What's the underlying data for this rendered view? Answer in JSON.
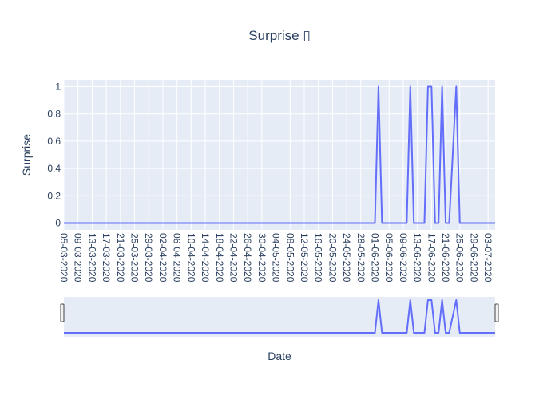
{
  "chart_data": {
    "type": "line",
    "title": "Surprise ▯",
    "xlabel": "Date",
    "ylabel": "Surprise",
    "ylim": [
      -0.05,
      1.05
    ],
    "yticks": [
      "0",
      "0.2",
      "0.4",
      "0.6",
      "0.8",
      "1"
    ],
    "xticks": [
      "05-03-2020",
      "09-03-2020",
      "13-03-2020",
      "17-03-2020",
      "21-03-2020",
      "25-03-2020",
      "29-03-2020",
      "02-04-2020",
      "06-04-2020",
      "10-04-2020",
      "14-04-2020",
      "18-04-2020",
      "22-04-2020",
      "26-04-2020",
      "30-04-2020",
      "04-05-2020",
      "08-05-2020",
      "12-05-2020",
      "16-05-2020",
      "20-05-2020",
      "24-05-2020",
      "28-05-2020",
      "01-06-2020",
      "05-06-2020",
      "09-06-2020",
      "13-06-2020",
      "17-06-2020",
      "21-06-2020",
      "25-06-2020",
      "29-06-2020",
      "03-07-2020"
    ],
    "grid": true,
    "legend": "none",
    "rangeslider": true,
    "series": [
      {
        "color": "#636efa",
        "x": [
          "05-03-2020",
          "01-06-2020",
          "02-06-2020",
          "03-06-2020",
          "10-06-2020",
          "11-06-2020",
          "12-06-2020",
          "15-06-2020",
          "16-06-2020",
          "17-06-2020",
          "18-06-2020",
          "19-06-2020",
          "20-06-2020",
          "21-06-2020",
          "22-06-2020",
          "24-06-2020",
          "25-06-2020",
          "26-06-2020",
          "05-07-2020"
        ],
        "y": [
          0,
          0,
          1,
          0,
          0,
          1,
          0,
          0,
          1,
          1,
          0,
          0,
          1,
          0,
          0,
          1,
          0,
          0,
          0
        ]
      }
    ]
  },
  "rangeslider": {
    "handle_left_label": "",
    "handle_right_label": ""
  }
}
